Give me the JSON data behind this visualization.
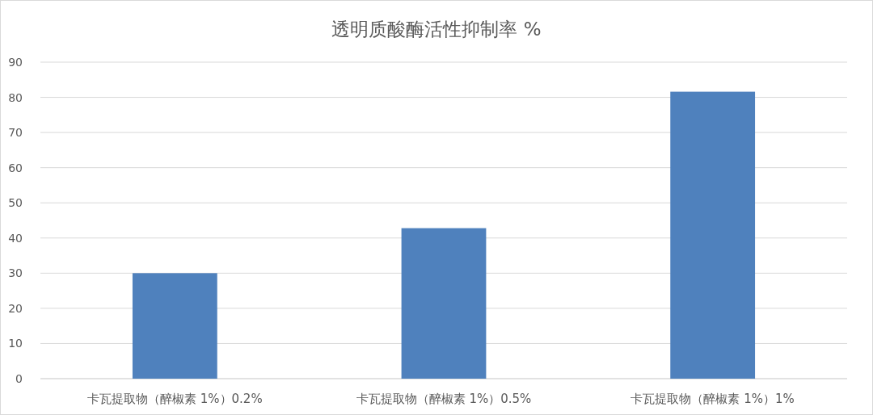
{
  "chart_data": {
    "type": "bar",
    "title": "透明质酸酶活性抑制率 %",
    "categories": [
      "卡瓦提取物（醉椒素 1%）0.2%",
      "卡瓦提取物（醉椒素 1%）0.5%",
      "卡瓦提取物（醉椒素 1%）1%"
    ],
    "values": [
      30,
      42.8,
      81.6
    ],
    "color": "#4f81bd",
    "ylim": [
      0,
      90
    ],
    "yticks": [
      0,
      10,
      20,
      30,
      40,
      50,
      60,
      70,
      80,
      90
    ],
    "grid": "y"
  }
}
